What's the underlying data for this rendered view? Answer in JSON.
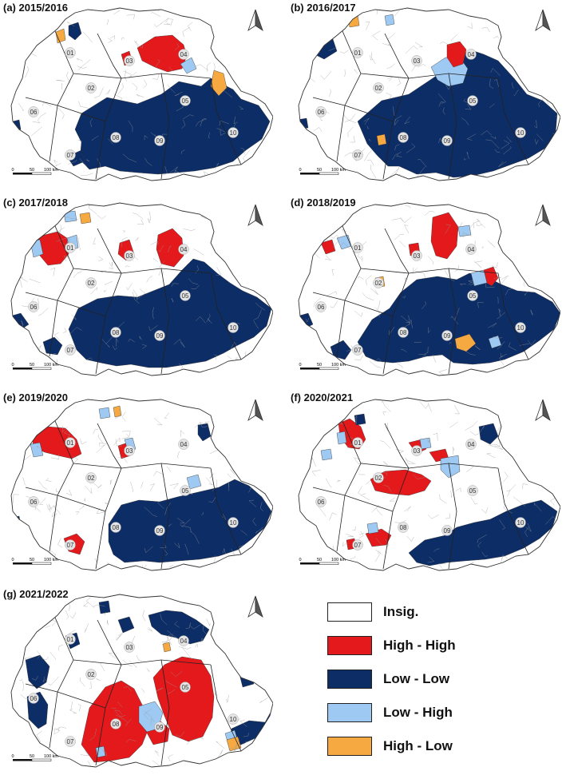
{
  "colors": {
    "insig": "#ffffff",
    "high_high": "#e3191c",
    "low_low": "#0d2d66",
    "low_high": "#9ec9f2",
    "high_low": "#f7a941",
    "border": "#6b6b6b"
  },
  "icons": {
    "north_arrow": "north-arrow-icon"
  },
  "region_labels": [
    "01",
    "02",
    "03",
    "04",
    "05",
    "06",
    "07",
    "08",
    "09",
    "10"
  ],
  "scale_bar": {
    "labels": [
      "0",
      "50",
      "100 km"
    ]
  },
  "panels": [
    {
      "id": "a",
      "title": "(a) 2015/2016",
      "clusters": {
        "high_high": [
          "03-04 north"
        ],
        "low_low": [
          "05",
          "08",
          "09",
          "10"
        ],
        "low_high": [
          "03 patch"
        ],
        "high_low": [
          "01 patch",
          "04 east patch"
        ]
      }
    },
    {
      "id": "b",
      "title": "(b) 2016/2017",
      "clusters": {
        "high_high": [
          "04"
        ],
        "low_low": [
          "05",
          "08",
          "09",
          "10"
        ],
        "low_high": [
          "03-04 patch"
        ],
        "high_low": [
          "01 north patch",
          "08 patch"
        ]
      }
    },
    {
      "id": "c",
      "title": "(c) 2017/2018",
      "clusters": {
        "high_high": [
          "01",
          "03",
          "04"
        ],
        "low_low": [
          "05",
          "07",
          "08",
          "09",
          "10"
        ],
        "low_high": [
          "01 patch"
        ],
        "high_low": [
          "01 north patch"
        ]
      }
    },
    {
      "id": "d",
      "title": "(d) 2018/2019",
      "clusters": {
        "high_high": [
          "01",
          "03",
          "04",
          "05 patch"
        ],
        "low_low": [
          "05",
          "07",
          "08",
          "09",
          "10"
        ],
        "low_high": [
          "01 patch",
          "05 patch"
        ],
        "high_low": [
          "08 patch",
          "09 south patch"
        ]
      }
    },
    {
      "id": "e",
      "title": "(e) 2019/2020",
      "clusters": {
        "high_high": [
          "01",
          "03",
          "07"
        ],
        "low_low": [
          "08",
          "09",
          "10"
        ],
        "low_high": [
          "01 patch",
          "05 patch"
        ],
        "high_low": [
          "03 north patch"
        ]
      }
    },
    {
      "id": "f",
      "title": "(f) 2020/2021",
      "clusters": {
        "high_high": [
          "01",
          "02",
          "03",
          "07-08"
        ],
        "low_low": [
          "04",
          "09",
          "10"
        ],
        "low_high": [
          "03 patch",
          "08 patch"
        ],
        "high_low": []
      }
    },
    {
      "id": "g",
      "title": "(g) 2021/2022",
      "clusters": {
        "high_high": [
          "05",
          "08",
          "09"
        ],
        "low_low": [
          "01",
          "04",
          "06",
          "10"
        ],
        "low_high": [
          "09 patch",
          "10 patch"
        ],
        "high_low": [
          "04 patch",
          "10 patch"
        ]
      }
    }
  ],
  "legend": [
    {
      "key": "insig",
      "label": "Insig."
    },
    {
      "key": "high_high",
      "label": "High - High"
    },
    {
      "key": "low_low",
      "label": "Low - Low"
    },
    {
      "key": "low_high",
      "label": "Low - High"
    },
    {
      "key": "high_low",
      "label": "High - Low"
    }
  ]
}
